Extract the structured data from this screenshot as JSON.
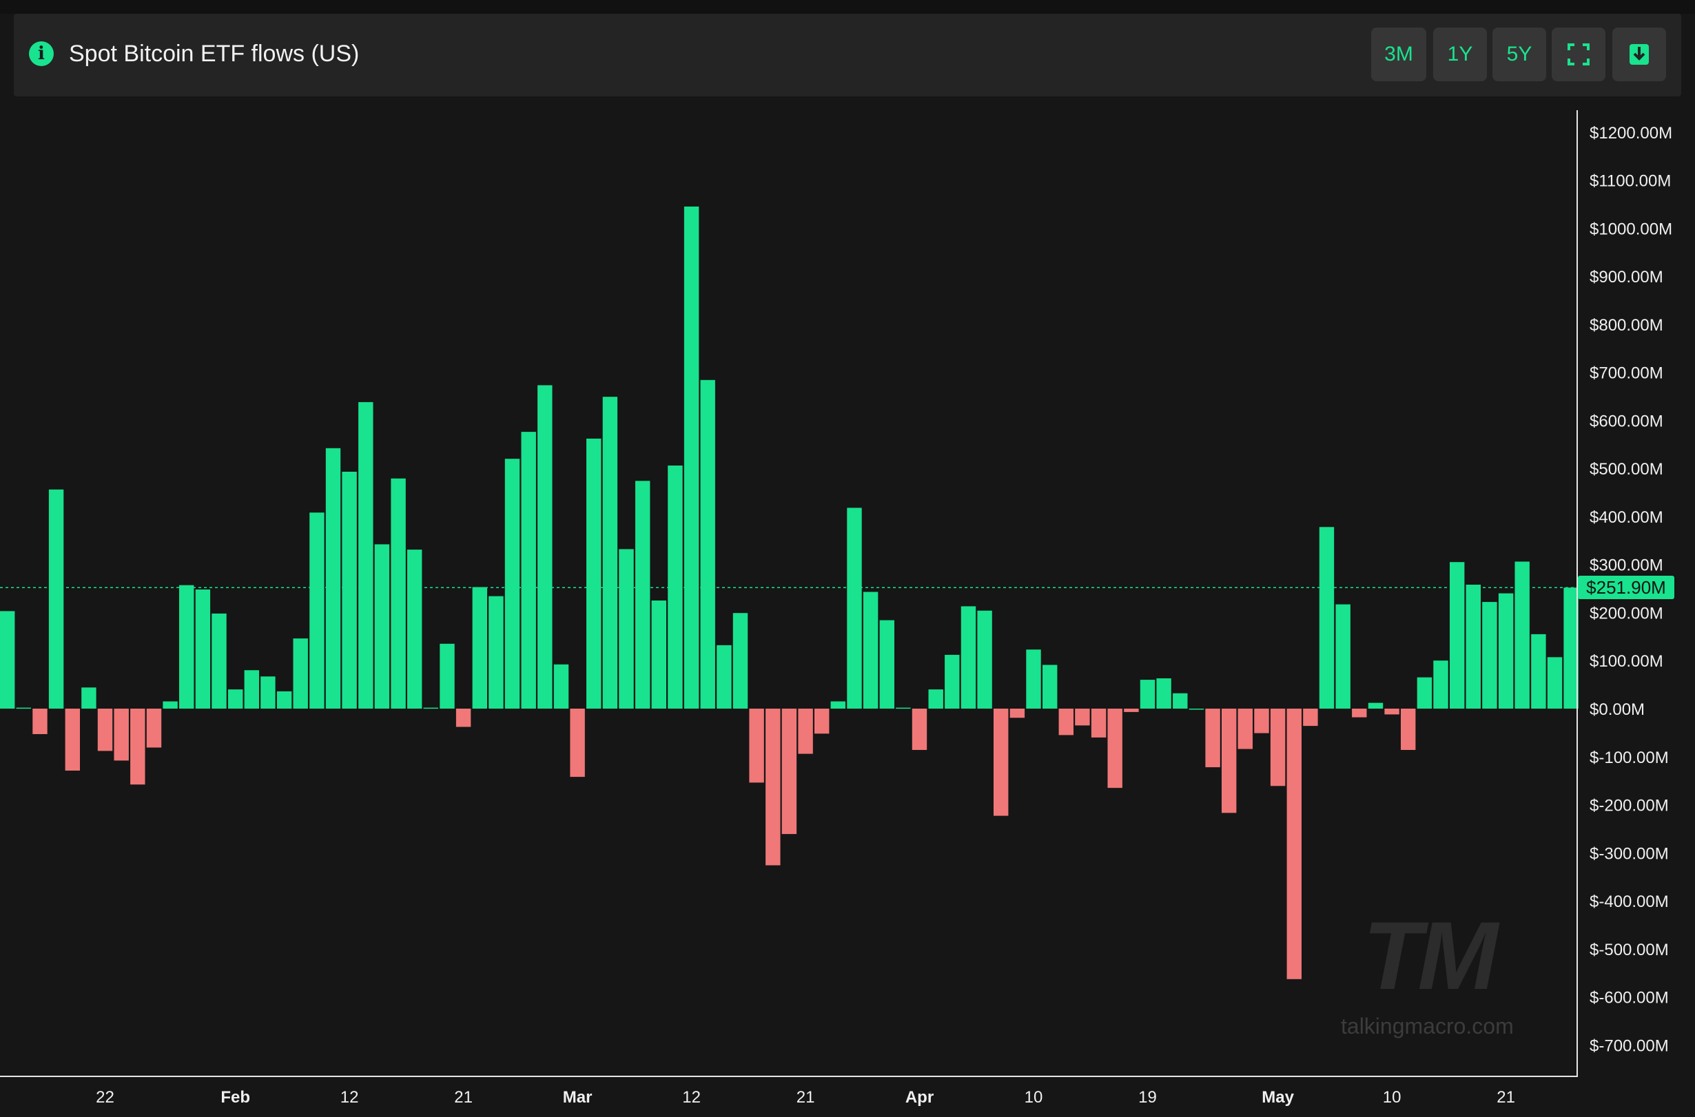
{
  "header": {
    "title": "Spot Bitcoin ETF flows (US)",
    "info_icon": "info-icon",
    "buttons": [
      {
        "label": "3M",
        "icon": ""
      },
      {
        "label": "1Y",
        "icon": ""
      },
      {
        "label": "5Y",
        "icon": ""
      },
      {
        "label": "",
        "icon": "fullscreen-icon"
      },
      {
        "label": "",
        "icon": "download-icon"
      }
    ]
  },
  "colors": {
    "positive": "#19e38e",
    "negative": "#f07878",
    "background": "#161616",
    "header_bg": "#242424"
  },
  "watermark": {
    "logo": "TM",
    "url": "talkingmacro.com"
  },
  "current_value": {
    "label": "$251.90M",
    "value": 251.9
  },
  "chart_data": {
    "type": "bar",
    "title": "Spot Bitcoin ETF flows (US)",
    "xlabel": "",
    "ylabel": "",
    "ylim": [
      -750,
      1200
    ],
    "yticks": [
      1200,
      1100,
      1000,
      900,
      800,
      700,
      600,
      500,
      400,
      300,
      200,
      100,
      0,
      -100,
      -200,
      -300,
      -400,
      -500,
      -600,
      -700
    ],
    "ytick_labels": [
      "$1200.00M",
      "$1100.00M",
      "$1000.00M",
      "$900.00M",
      "$800.00M",
      "$700.00M",
      "$600.00M",
      "$500.00M",
      "$400.00M",
      "$300.00M",
      "$200.00M",
      "$100.00M",
      "$0.00M",
      "$-100.00M",
      "$-200.00M",
      "$-300.00M",
      "$-400.00M",
      "$-500.00M",
      "$-600.00M",
      "$-700.00M"
    ],
    "xtick_labels": [
      {
        "label": "22",
        "index": 6,
        "bold": false
      },
      {
        "label": "Feb",
        "index": 14,
        "bold": true
      },
      {
        "label": "12",
        "index": 21,
        "bold": false
      },
      {
        "label": "21",
        "index": 28,
        "bold": false
      },
      {
        "label": "Mar",
        "index": 35,
        "bold": true
      },
      {
        "label": "12",
        "index": 42,
        "bold": false
      },
      {
        "label": "21",
        "index": 49,
        "bold": false
      },
      {
        "label": "Apr",
        "index": 56,
        "bold": true
      },
      {
        "label": "10",
        "index": 63,
        "bold": false
      },
      {
        "label": "19",
        "index": 70,
        "bold": false
      },
      {
        "label": "May",
        "index": 78,
        "bold": true
      },
      {
        "label": "10",
        "index": 85,
        "bold": false
      },
      {
        "label": "21",
        "index": 92,
        "bold": false
      }
    ],
    "values": [
      203,
      2,
      -53,
      456,
      -129,
      44,
      -88,
      -108,
      -158,
      -81,
      15,
      257,
      248,
      198,
      40,
      80,
      67,
      36,
      146,
      408,
      542,
      493,
      638,
      342,
      479,
      331,
      2,
      135,
      -38,
      253,
      234,
      520,
      576,
      673,
      92,
      -142,
      562,
      649,
      332,
      474,
      225,
      506,
      1045,
      684,
      132,
      199,
      -154,
      -326,
      -261,
      -94,
      -52,
      15,
      418,
      243,
      184,
      2,
      -86,
      40,
      112,
      213,
      204,
      -223,
      -19,
      123,
      91,
      -55,
      -35,
      -60,
      -165,
      -7,
      60,
      63,
      32,
      0,
      -122,
      -217,
      -84,
      -51,
      -161,
      -563,
      -36,
      378,
      217,
      -18,
      12,
      -12,
      -86,
      65,
      100,
      305,
      258,
      222,
      240,
      306,
      155,
      107,
      251.9
    ],
    "legend": "none",
    "grid": false
  }
}
